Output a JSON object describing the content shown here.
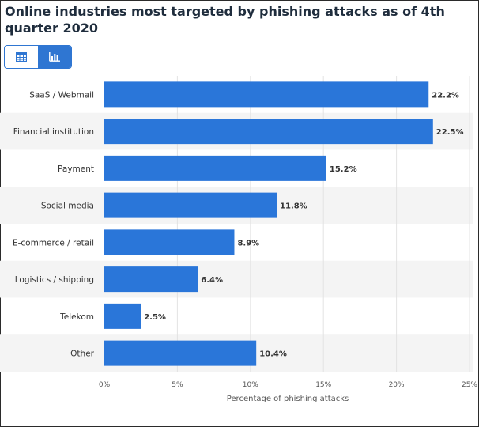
{
  "page": {
    "title": "Online industries most targeted by phishing attacks as of 4th quarter 2020"
  },
  "toggle": {
    "table_icon": "table-icon",
    "chart_icon": "bar-chart-icon",
    "active": "chart"
  },
  "colors": {
    "bar": "#2a76d9",
    "stripe": "#f4f4f4",
    "accent": "#2f76d2",
    "text": "#333333",
    "grid": "#e3e3e3"
  },
  "chart_data": {
    "type": "bar",
    "orientation": "horizontal",
    "title": "Online industries most targeted by phishing attacks as of 4th quarter 2020",
    "categories": [
      "SaaS / Webmail",
      "Financial institution",
      "Payment",
      "Social media",
      "E-commerce / retail",
      "Logistics / shipping",
      "Telekom",
      "Other"
    ],
    "values": [
      22.2,
      22.5,
      15.2,
      11.8,
      8.9,
      6.4,
      2.5,
      10.4
    ],
    "value_labels": [
      "22.2%",
      "22.5%",
      "15.2%",
      "11.8%",
      "8.9%",
      "6.4%",
      "2.5%",
      "10.4%"
    ],
    "xlabel": "Percentage of phishing attacks",
    "ylabel": "",
    "xlim": [
      0,
      25
    ],
    "xticks": [
      0,
      5,
      10,
      15,
      20,
      25
    ],
    "xtick_labels": [
      "0%",
      "5%",
      "10%",
      "15%",
      "20%",
      "25%"
    ],
    "grid": true,
    "legend": "none"
  }
}
